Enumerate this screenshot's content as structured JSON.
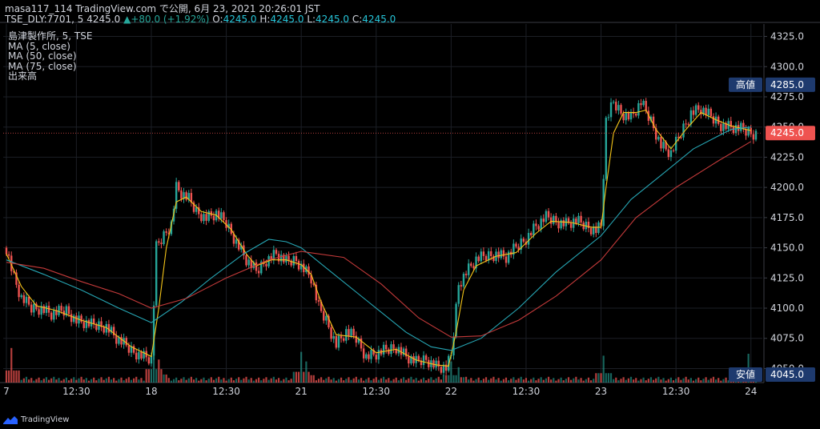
{
  "header": {
    "line1_user": "masa117_114 TradingView.com で公開, 6月 23, 2021 20:26:01 JST",
    "symbol": "TSE_DLY:7701, 5",
    "last_price": "4245.0",
    "change": "▲+80.0 (+1.92%)",
    "o_label": "O:",
    "o_value": "4245.0",
    "h_label": "H:",
    "h_value": "4245.0",
    "l_label": "L:",
    "l_value": "4245.0",
    "c_label": "C:",
    "c_value": "4245.0"
  },
  "legend": {
    "title": "島津製作所, 5, TSE",
    "ma5": "MA (5, close)",
    "ma50": "MA (50, close)",
    "ma75": "MA (75, close)",
    "volume": "出来高"
  },
  "footer": {
    "brand": "TradingView"
  },
  "colors": {
    "up": "#26a69a",
    "down": "#ef5350",
    "ma5": "#f5c518",
    "ma50": "#26a5b3",
    "ma75": "#c43a3a",
    "axis_label_bg": "#1e3a6e",
    "last_price_bg": "#ef5350"
  },
  "chart_data": {
    "type": "candlestick",
    "ylim": [
      4045,
      4330
    ],
    "y_ticks": [
      4325,
      4300,
      4275,
      4250,
      4225,
      4200,
      4175,
      4150,
      4125,
      4100,
      4075,
      4050
    ],
    "y_tick_labels": [
      "4325.0",
      "4300.0",
      "4275.0",
      "4250.0",
      "4225.0",
      "4200.0",
      "4175.0",
      "4150.0",
      "4125.0",
      "4100.0",
      "4075.0",
      "4050.0"
    ],
    "x_labels": [
      {
        "label": "7",
        "x": 0
      },
      {
        "label": "12:30",
        "x": 28
      },
      {
        "label": "18",
        "x": 58
      },
      {
        "label": "12:30",
        "x": 88
      },
      {
        "label": "21",
        "x": 118
      },
      {
        "label": "12:30",
        "x": 148
      },
      {
        "label": "22",
        "x": 178
      },
      {
        "label": "12:30",
        "x": 208
      },
      {
        "label": "23",
        "x": 238
      },
      {
        "label": "12:30",
        "x": 268
      },
      {
        "label": "24",
        "x": 298
      }
    ],
    "x_max": 300,
    "price_markers": [
      {
        "label": "高値",
        "value": "4285.0",
        "y": 4285,
        "kind": "high"
      },
      {
        "label": "",
        "value": "4245.0",
        "y": 4245,
        "kind": "last"
      },
      {
        "label": "安値",
        "value": "4045.0",
        "y": 4045,
        "kind": "low"
      }
    ],
    "close_path": [
      {
        "x": 0,
        "y": 4150
      },
      {
        "x": 3,
        "y": 4125
      },
      {
        "x": 6,
        "y": 4108
      },
      {
        "x": 10,
        "y": 4100
      },
      {
        "x": 14,
        "y": 4100
      },
      {
        "x": 18,
        "y": 4095
      },
      {
        "x": 24,
        "y": 4098
      },
      {
        "x": 28,
        "y": 4090
      },
      {
        "x": 34,
        "y": 4086
      },
      {
        "x": 40,
        "y": 4085
      },
      {
        "x": 44,
        "y": 4075
      },
      {
        "x": 50,
        "y": 4065
      },
      {
        "x": 55,
        "y": 4060
      },
      {
        "x": 58,
        "y": 4058
      },
      {
        "x": 60,
        "y": 4150
      },
      {
        "x": 63,
        "y": 4160
      },
      {
        "x": 66,
        "y": 4170
      },
      {
        "x": 68,
        "y": 4200
      },
      {
        "x": 70,
        "y": 4195
      },
      {
        "x": 73,
        "y": 4190
      },
      {
        "x": 76,
        "y": 4180
      },
      {
        "x": 80,
        "y": 4175
      },
      {
        "x": 84,
        "y": 4178
      },
      {
        "x": 88,
        "y": 4170
      },
      {
        "x": 92,
        "y": 4155
      },
      {
        "x": 96,
        "y": 4140
      },
      {
        "x": 100,
        "y": 4130
      },
      {
        "x": 104,
        "y": 4140
      },
      {
        "x": 108,
        "y": 4145
      },
      {
        "x": 112,
        "y": 4138
      },
      {
        "x": 116,
        "y": 4140
      },
      {
        "x": 118,
        "y": 4135
      },
      {
        "x": 120,
        "y": 4130
      },
      {
        "x": 122,
        "y": 4125
      },
      {
        "x": 125,
        "y": 4100
      },
      {
        "x": 128,
        "y": 4090
      },
      {
        "x": 132,
        "y": 4070
      },
      {
        "x": 136,
        "y": 4080
      },
      {
        "x": 140,
        "y": 4075
      },
      {
        "x": 144,
        "y": 4060
      },
      {
        "x": 148,
        "y": 4062
      },
      {
        "x": 152,
        "y": 4065
      },
      {
        "x": 156,
        "y": 4068
      },
      {
        "x": 160,
        "y": 4060
      },
      {
        "x": 164,
        "y": 4055
      },
      {
        "x": 168,
        "y": 4058
      },
      {
        "x": 172,
        "y": 4052
      },
      {
        "x": 176,
        "y": 4050
      },
      {
        "x": 178,
        "y": 4060
      },
      {
        "x": 181,
        "y": 4120
      },
      {
        "x": 184,
        "y": 4130
      },
      {
        "x": 188,
        "y": 4140
      },
      {
        "x": 192,
        "y": 4143
      },
      {
        "x": 196,
        "y": 4145
      },
      {
        "x": 200,
        "y": 4142
      },
      {
        "x": 204,
        "y": 4150
      },
      {
        "x": 208,
        "y": 4158
      },
      {
        "x": 212,
        "y": 4168
      },
      {
        "x": 216,
        "y": 4175
      },
      {
        "x": 220,
        "y": 4172
      },
      {
        "x": 224,
        "y": 4170
      },
      {
        "x": 228,
        "y": 4172
      },
      {
        "x": 232,
        "y": 4168
      },
      {
        "x": 236,
        "y": 4165
      },
      {
        "x": 238,
        "y": 4168
      },
      {
        "x": 240,
        "y": 4255
      },
      {
        "x": 243,
        "y": 4270
      },
      {
        "x": 246,
        "y": 4262
      },
      {
        "x": 250,
        "y": 4258
      },
      {
        "x": 254,
        "y": 4270
      },
      {
        "x": 258,
        "y": 4255
      },
      {
        "x": 262,
        "y": 4235
      },
      {
        "x": 266,
        "y": 4228
      },
      {
        "x": 270,
        "y": 4245
      },
      {
        "x": 274,
        "y": 4262
      },
      {
        "x": 278,
        "y": 4265
      },
      {
        "x": 282,
        "y": 4258
      },
      {
        "x": 286,
        "y": 4252
      },
      {
        "x": 290,
        "y": 4250
      },
      {
        "x": 294,
        "y": 4248
      },
      {
        "x": 298,
        "y": 4245
      }
    ],
    "series": [
      {
        "name": "MA (5, close)",
        "color": "#f5c518",
        "points": [
          {
            "x": 0,
            "y": 4145
          },
          {
            "x": 6,
            "y": 4118
          },
          {
            "x": 12,
            "y": 4102
          },
          {
            "x": 20,
            "y": 4098
          },
          {
            "x": 30,
            "y": 4090
          },
          {
            "x": 40,
            "y": 4084
          },
          {
            "x": 50,
            "y": 4068
          },
          {
            "x": 58,
            "y": 4060
          },
          {
            "x": 61,
            "y": 4100
          },
          {
            "x": 64,
            "y": 4150
          },
          {
            "x": 68,
            "y": 4188
          },
          {
            "x": 72,
            "y": 4192
          },
          {
            "x": 78,
            "y": 4180
          },
          {
            "x": 84,
            "y": 4177
          },
          {
            "x": 90,
            "y": 4165
          },
          {
            "x": 96,
            "y": 4145
          },
          {
            "x": 100,
            "y": 4135
          },
          {
            "x": 106,
            "y": 4140
          },
          {
            "x": 112,
            "y": 4140
          },
          {
            "x": 118,
            "y": 4136
          },
          {
            "x": 122,
            "y": 4128
          },
          {
            "x": 126,
            "y": 4105
          },
          {
            "x": 132,
            "y": 4078
          },
          {
            "x": 140,
            "y": 4076
          },
          {
            "x": 148,
            "y": 4063
          },
          {
            "x": 156,
            "y": 4066
          },
          {
            "x": 164,
            "y": 4057
          },
          {
            "x": 172,
            "y": 4053
          },
          {
            "x": 177,
            "y": 4052
          },
          {
            "x": 180,
            "y": 4080
          },
          {
            "x": 183,
            "y": 4115
          },
          {
            "x": 188,
            "y": 4135
          },
          {
            "x": 196,
            "y": 4143
          },
          {
            "x": 204,
            "y": 4146
          },
          {
            "x": 212,
            "y": 4162
          },
          {
            "x": 218,
            "y": 4172
          },
          {
            "x": 226,
            "y": 4171
          },
          {
            "x": 234,
            "y": 4167
          },
          {
            "x": 238,
            "y": 4167
          },
          {
            "x": 240,
            "y": 4200
          },
          {
            "x": 243,
            "y": 4245
          },
          {
            "x": 247,
            "y": 4262
          },
          {
            "x": 252,
            "y": 4262
          },
          {
            "x": 256,
            "y": 4264
          },
          {
            "x": 260,
            "y": 4248
          },
          {
            "x": 266,
            "y": 4232
          },
          {
            "x": 272,
            "y": 4248
          },
          {
            "x": 278,
            "y": 4262
          },
          {
            "x": 284,
            "y": 4256
          },
          {
            "x": 290,
            "y": 4251
          },
          {
            "x": 298,
            "y": 4247
          }
        ]
      },
      {
        "name": "MA (50, close)",
        "color": "#26a5b3",
        "points": [
          {
            "x": 0,
            "y": 4140
          },
          {
            "x": 15,
            "y": 4128
          },
          {
            "x": 30,
            "y": 4115
          },
          {
            "x": 45,
            "y": 4100
          },
          {
            "x": 58,
            "y": 4088
          },
          {
            "x": 70,
            "y": 4105
          },
          {
            "x": 82,
            "y": 4125
          },
          {
            "x": 95,
            "y": 4145
          },
          {
            "x": 105,
            "y": 4157
          },
          {
            "x": 112,
            "y": 4155
          },
          {
            "x": 118,
            "y": 4150
          },
          {
            "x": 130,
            "y": 4130
          },
          {
            "x": 145,
            "y": 4105
          },
          {
            "x": 160,
            "y": 4080
          },
          {
            "x": 170,
            "y": 4068
          },
          {
            "x": 178,
            "y": 4065
          },
          {
            "x": 190,
            "y": 4075
          },
          {
            "x": 205,
            "y": 4100
          },
          {
            "x": 220,
            "y": 4130
          },
          {
            "x": 238,
            "y": 4160
          },
          {
            "x": 250,
            "y": 4190
          },
          {
            "x": 262,
            "y": 4210
          },
          {
            "x": 275,
            "y": 4232
          },
          {
            "x": 290,
            "y": 4248
          },
          {
            "x": 298,
            "y": 4250
          }
        ]
      },
      {
        "name": "MA (75, close)",
        "color": "#c43a3a",
        "points": [
          {
            "x": 0,
            "y": 4138
          },
          {
            "x": 15,
            "y": 4133
          },
          {
            "x": 30,
            "y": 4122
          },
          {
            "x": 45,
            "y": 4112
          },
          {
            "x": 58,
            "y": 4100
          },
          {
            "x": 72,
            "y": 4108
          },
          {
            "x": 88,
            "y": 4125
          },
          {
            "x": 105,
            "y": 4140
          },
          {
            "x": 118,
            "y": 4147
          },
          {
            "x": 135,
            "y": 4142
          },
          {
            "x": 150,
            "y": 4120
          },
          {
            "x": 165,
            "y": 4092
          },
          {
            "x": 178,
            "y": 4076
          },
          {
            "x": 190,
            "y": 4077
          },
          {
            "x": 205,
            "y": 4090
          },
          {
            "x": 220,
            "y": 4110
          },
          {
            "x": 238,
            "y": 4140
          },
          {
            "x": 252,
            "y": 4175
          },
          {
            "x": 268,
            "y": 4200
          },
          {
            "x": 285,
            "y": 4222
          },
          {
            "x": 298,
            "y": 4238
          }
        ]
      }
    ],
    "volume_spikes": [
      {
        "x": 2,
        "v": 0.9
      },
      {
        "x": 59,
        "v": 1.0
      },
      {
        "x": 61,
        "v": 0.6
      },
      {
        "x": 118,
        "v": 0.8
      },
      {
        "x": 120,
        "v": 0.55
      },
      {
        "x": 178,
        "v": 0.55
      },
      {
        "x": 181,
        "v": 0.4
      },
      {
        "x": 239,
        "v": 0.7
      },
      {
        "x": 297,
        "v": 0.75
      }
    ]
  }
}
